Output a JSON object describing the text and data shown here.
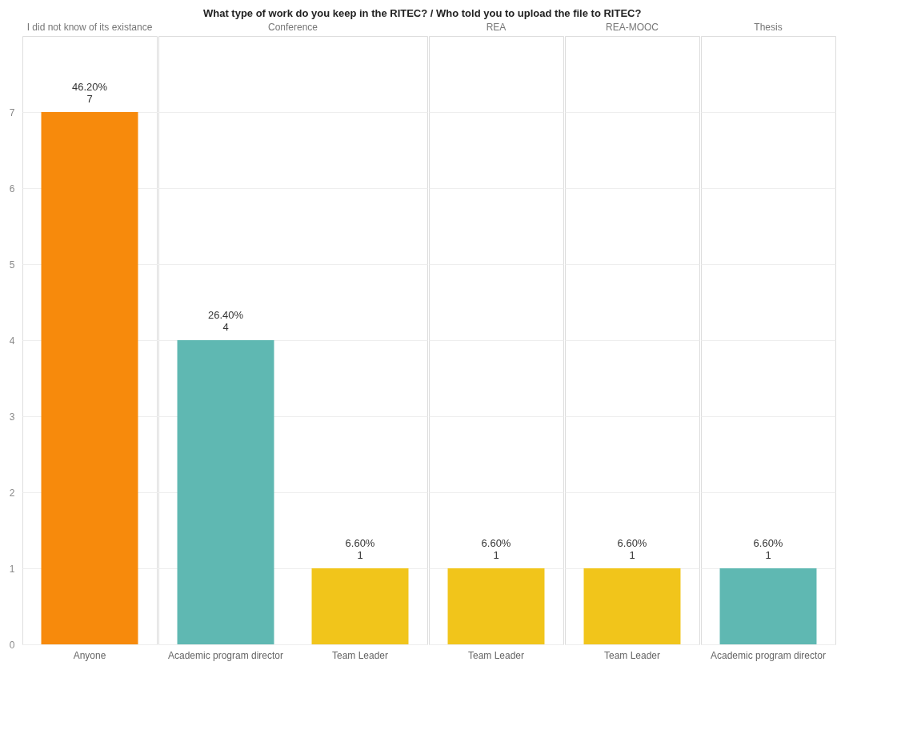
{
  "chart_data": [
    {
      "type": "bar",
      "annotations": [
        "What type of work do you keep in the RITEC?  /  Who told you to upload the file to RITEC?"
      ],
      "subtitle": "I did not know of its existance",
      "categories": [
        "Anyone"
      ],
      "values": [
        7
      ],
      "colors": [
        "#f78a0c"
      ],
      "value_labels": [
        "46.20%\n7"
      ],
      "ylim": [
        0,
        8
      ],
      "yticks": [
        0,
        1,
        2,
        3,
        4,
        5,
        6,
        7
      ],
      "grid": "y"
    },
    {
      "type": "bar",
      "subtitle": "Conference",
      "categories": [
        "Academic program director",
        "Team Leader"
      ],
      "values": [
        4,
        1
      ],
      "colors": [
        "#5fb8b2",
        "#f1c51b"
      ],
      "value_labels": [
        "26.40%\n4",
        "6.60%\n1"
      ],
      "ylim": [
        0,
        8
      ],
      "yticks": [
        0,
        1,
        2,
        3,
        4,
        5,
        6,
        7
      ],
      "grid": "y",
      "tick_labels": "x"
    },
    {
      "type": "bar",
      "subtitle": "REA",
      "categories": [
        "Team Leader"
      ],
      "values": [
        1
      ],
      "colors": [
        "#f1c51b"
      ],
      "value_labels": [
        "6.60%\n1"
      ],
      "ylim": [
        0,
        8
      ],
      "yticks": [
        0,
        1,
        2,
        3,
        4,
        5,
        6,
        7
      ],
      "grid": "y",
      "tick_labels": "x"
    },
    {
      "type": "bar",
      "subtitle": "REA-MOOC",
      "categories": [
        "Team Leader"
      ],
      "values": [
        1
      ],
      "colors": [
        "#f1c51b"
      ],
      "value_labels": [
        "6.60%\n1"
      ],
      "ylim": [
        0,
        8
      ],
      "yticks": [
        0,
        1,
        2,
        3,
        4,
        5,
        6,
        7
      ],
      "grid": "y",
      "tick_labels": "x"
    },
    {
      "type": "bar",
      "subtitle": "Thesis",
      "categories": [
        "Academic program director"
      ],
      "values": [
        1
      ],
      "colors": [
        "#5fb8b2"
      ],
      "value_labels": [
        "6.60%\n1"
      ],
      "ylim": [
        0,
        8
      ],
      "yticks": [
        0,
        1,
        2,
        3,
        4,
        5,
        6,
        7
      ],
      "grid": "y",
      "tick_labels": "x"
    }
  ]
}
